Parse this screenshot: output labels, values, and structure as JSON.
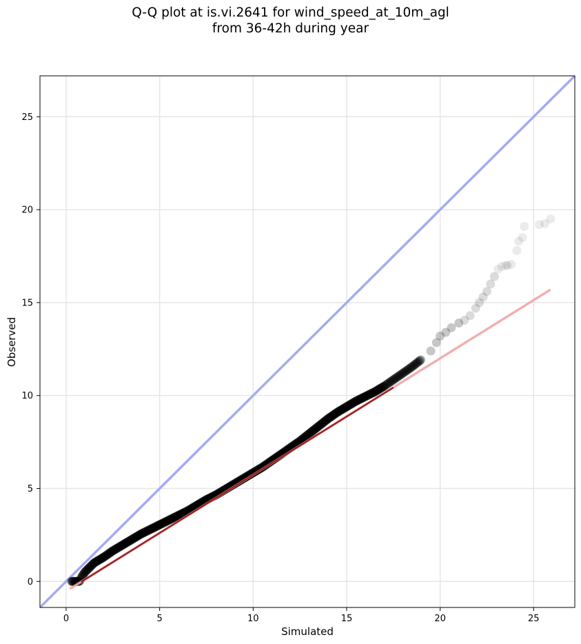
{
  "title": {
    "line1": "Q-Q plot at is.vi.2641 for wind_speed_at_10m_agl",
    "line2": "from 36-42h during year"
  },
  "chart_data": {
    "type": "scatter",
    "xlabel": "Simulated",
    "ylabel": "Observed",
    "xlim": [
      -1.4,
      27.2
    ],
    "ylim": [
      -1.4,
      27.2
    ],
    "xticks": [
      0,
      5,
      10,
      15,
      20,
      25
    ],
    "yticks": [
      0,
      5,
      10,
      15,
      20,
      25
    ],
    "grid": true,
    "colors": {
      "points": "#000000",
      "identity_line": "#a6a9f2",
      "fit_line": "#f2a6a6",
      "fit_line_dense": "#8b0000",
      "grid": "#e6e6e6"
    },
    "identity_line": {
      "x": [
        -1.4,
        27.2
      ],
      "y": [
        -1.4,
        27.2
      ]
    },
    "fit_line": {
      "x": [
        0.2,
        25.9
      ],
      "y": [
        -0.4,
        15.7
      ]
    },
    "series": [
      {
        "x": [
          0.3,
          0.4,
          0.5,
          0.6,
          0.7,
          0.75,
          0.8,
          0.9,
          1.0,
          1.2,
          1.5,
          2.0,
          2.5,
          3.0,
          3.5,
          4.0,
          4.5,
          5.0,
          5.5,
          6.0,
          6.5,
          7.0,
          7.5,
          8.0,
          8.5,
          9.0,
          9.5,
          10.0,
          10.5,
          11.0,
          11.5,
          12.0,
          12.5,
          13.0,
          13.5,
          14.0,
          14.5,
          15.0,
          15.5,
          16.0,
          16.5,
          17.0,
          17.5,
          18.0,
          18.5,
          19.0,
          19.5,
          19.8,
          20.0,
          20.3,
          20.6,
          21.0,
          21.3,
          21.6,
          21.9,
          22.1,
          22.3,
          22.5,
          22.7,
          22.9,
          23.1,
          23.3,
          23.5,
          23.6,
          23.8,
          24.1,
          24.2,
          24.4,
          24.5,
          25.3,
          25.6,
          25.9
        ],
        "y": [
          0.0,
          0.0,
          0.0,
          0.0,
          0.0,
          0.05,
          0.2,
          0.35,
          0.5,
          0.7,
          1.0,
          1.3,
          1.65,
          1.95,
          2.25,
          2.55,
          2.8,
          3.05,
          3.3,
          3.55,
          3.8,
          4.1,
          4.4,
          4.65,
          4.95,
          5.25,
          5.55,
          5.85,
          6.15,
          6.5,
          6.85,
          7.2,
          7.55,
          7.95,
          8.35,
          8.75,
          9.1,
          9.4,
          9.7,
          9.95,
          10.2,
          10.5,
          10.85,
          11.2,
          11.55,
          11.95,
          12.4,
          12.85,
          13.2,
          13.4,
          13.65,
          13.9,
          14.05,
          14.3,
          14.7,
          15.0,
          15.3,
          15.6,
          16.0,
          16.4,
          16.8,
          16.95,
          17.0,
          17.0,
          17.05,
          17.8,
          18.3,
          18.5,
          19.1,
          19.2,
          19.25,
          19.5
        ]
      }
    ]
  }
}
